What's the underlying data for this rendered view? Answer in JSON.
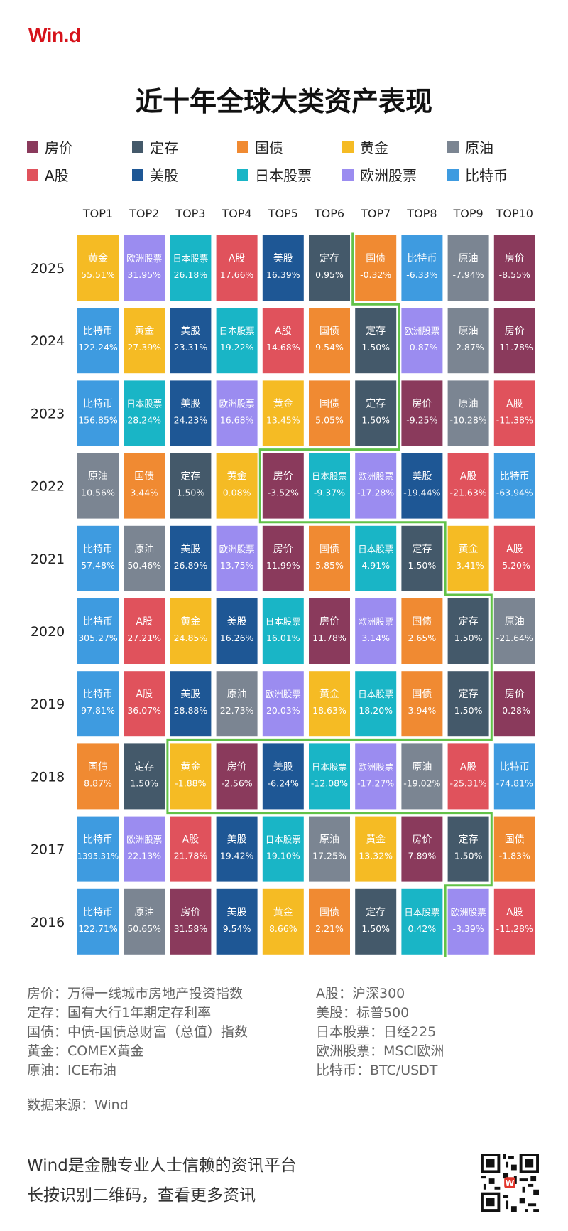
{
  "brand": "Win.d",
  "title": "近十年全球大类资产表现",
  "legend": [
    {
      "label": "房价",
      "color": "#8a3a5c"
    },
    {
      "label": "定存",
      "color": "#44596a"
    },
    {
      "label": "国债",
      "color": "#f08a32"
    },
    {
      "label": "黄金",
      "color": "#f5bb24"
    },
    {
      "label": "原油",
      "color": "#7b8592"
    },
    {
      "label": "A股",
      "color": "#e0525c"
    },
    {
      "label": "美股",
      "color": "#1e5795"
    },
    {
      "label": "日本股票",
      "color": "#19b5c6"
    },
    {
      "label": "欧洲股票",
      "color": "#9b8cf0"
    },
    {
      "label": "比特币",
      "color": "#3e9be0"
    }
  ],
  "chart_data": {
    "type": "table",
    "title": "近十年全球大类资产表现",
    "columns": [
      "TOP1",
      "TOP2",
      "TOP3",
      "TOP4",
      "TOP5",
      "TOP6",
      "TOP7",
      "TOP8",
      "TOP9",
      "TOP10"
    ],
    "rows": [
      {
        "year": "2025",
        "cells": [
          [
            "黄金",
            "55.51%"
          ],
          [
            "欧洲股票",
            "31.95%"
          ],
          [
            "日本股票",
            "26.18%"
          ],
          [
            "A股",
            "17.66%"
          ],
          [
            "美股",
            "16.39%"
          ],
          [
            "定存",
            "0.95%"
          ],
          [
            "国债",
            "-0.32%"
          ],
          [
            "比特币",
            "-6.33%"
          ],
          [
            "原油",
            "-7.94%"
          ],
          [
            "房价",
            "-8.55%"
          ]
        ]
      },
      {
        "year": "2024",
        "cells": [
          [
            "比特币",
            "122.24%"
          ],
          [
            "黄金",
            "27.39%"
          ],
          [
            "美股",
            "23.31%"
          ],
          [
            "日本股票",
            "19.22%"
          ],
          [
            "A股",
            "14.68%"
          ],
          [
            "国债",
            "9.54%"
          ],
          [
            "定存",
            "1.50%"
          ],
          [
            "欧洲股票",
            "-0.87%"
          ],
          [
            "原油",
            "-2.87%"
          ],
          [
            "房价",
            "-11.78%"
          ]
        ]
      },
      {
        "year": "2023",
        "cells": [
          [
            "比特币",
            "156.85%"
          ],
          [
            "日本股票",
            "28.24%"
          ],
          [
            "美股",
            "24.23%"
          ],
          [
            "欧洲股票",
            "16.68%"
          ],
          [
            "黄金",
            "13.45%"
          ],
          [
            "国债",
            "5.05%"
          ],
          [
            "定存",
            "1.50%"
          ],
          [
            "房价",
            "-9.25%"
          ],
          [
            "原油",
            "-10.28%"
          ],
          [
            "A股",
            "-11.38%"
          ]
        ]
      },
      {
        "year": "2022",
        "cells": [
          [
            "原油",
            "10.56%"
          ],
          [
            "国债",
            "3.44%"
          ],
          [
            "定存",
            "1.50%"
          ],
          [
            "黄金",
            "0.08%"
          ],
          [
            "房价",
            "-3.52%"
          ],
          [
            "日本股票",
            "-9.37%"
          ],
          [
            "欧洲股票",
            "-17.28%"
          ],
          [
            "美股",
            "-19.44%"
          ],
          [
            "A股",
            "-21.63%"
          ],
          [
            "比特币",
            "-63.94%"
          ]
        ]
      },
      {
        "year": "2021",
        "cells": [
          [
            "比特币",
            "57.48%"
          ],
          [
            "原油",
            "50.46%"
          ],
          [
            "美股",
            "26.89%"
          ],
          [
            "欧洲股票",
            "13.75%"
          ],
          [
            "房价",
            "11.99%"
          ],
          [
            "国债",
            "5.85%"
          ],
          [
            "日本股票",
            "4.91%"
          ],
          [
            "定存",
            "1.50%"
          ],
          [
            "黄金",
            "-3.41%"
          ],
          [
            "A股",
            "-5.20%"
          ]
        ]
      },
      {
        "year": "2020",
        "cells": [
          [
            "比特币",
            "305.27%"
          ],
          [
            "A股",
            "27.21%"
          ],
          [
            "黄金",
            "24.85%"
          ],
          [
            "美股",
            "16.26%"
          ],
          [
            "日本股票",
            "16.01%"
          ],
          [
            "房价",
            "11.78%"
          ],
          [
            "欧洲股票",
            "3.14%"
          ],
          [
            "国债",
            "2.65%"
          ],
          [
            "定存",
            "1.50%"
          ],
          [
            "原油",
            "-21.64%"
          ]
        ]
      },
      {
        "year": "2019",
        "cells": [
          [
            "比特币",
            "97.81%"
          ],
          [
            "A股",
            "36.07%"
          ],
          [
            "美股",
            "28.88%"
          ],
          [
            "原油",
            "22.73%"
          ],
          [
            "欧洲股票",
            "20.03%"
          ],
          [
            "黄金",
            "18.63%"
          ],
          [
            "日本股票",
            "18.20%"
          ],
          [
            "国债",
            "3.94%"
          ],
          [
            "定存",
            "1.50%"
          ],
          [
            "房价",
            "-0.28%"
          ]
        ]
      },
      {
        "year": "2018",
        "cells": [
          [
            "国债",
            "8.87%"
          ],
          [
            "定存",
            "1.50%"
          ],
          [
            "黄金",
            "-1.88%"
          ],
          [
            "房价",
            "-2.56%"
          ],
          [
            "美股",
            "-6.24%"
          ],
          [
            "日本股票",
            "-12.08%"
          ],
          [
            "欧洲股票",
            "-17.27%"
          ],
          [
            "原油",
            "-19.02%"
          ],
          [
            "A股",
            "-25.31%"
          ],
          [
            "比特币",
            "-74.81%"
          ]
        ]
      },
      {
        "year": "2017",
        "cells": [
          [
            "比特币",
            "1395.31%"
          ],
          [
            "欧洲股票",
            "22.13%"
          ],
          [
            "A股",
            "21.78%"
          ],
          [
            "美股",
            "19.42%"
          ],
          [
            "日本股票",
            "19.10%"
          ],
          [
            "原油",
            "17.25%"
          ],
          [
            "黄金",
            "13.32%"
          ],
          [
            "房价",
            "7.89%"
          ],
          [
            "定存",
            "1.50%"
          ],
          [
            "国债",
            "-1.83%"
          ]
        ]
      },
      {
        "year": "2016",
        "cells": [
          [
            "比特币",
            "122.71%"
          ],
          [
            "原油",
            "50.65%"
          ],
          [
            "房价",
            "31.58%"
          ],
          [
            "美股",
            "9.54%"
          ],
          [
            "黄金",
            "8.66%"
          ],
          [
            "国债",
            "2.21%"
          ],
          [
            "定存",
            "1.50%"
          ],
          [
            "日本股票",
            "0.42%"
          ],
          [
            "欧洲股票",
            "-3.39%"
          ],
          [
            "A股",
            "-11.28%"
          ]
        ]
      }
    ],
    "highlight": {
      "description": "zero-return boundary",
      "color": "#62c248"
    }
  },
  "notes_left": [
    "房价：万得一线城市房地产投资指数",
    "定存：国有大行1年期定存利率",
    "国债：中债-国债总财富（总值）指数",
    "黄金：COMEX黄金",
    "原油：ICE布油"
  ],
  "notes_right": [
    "A股：沪深300",
    "美股：标普500",
    "日本股票：日经225",
    "欧洲股票：MSCI欧洲",
    "比特币：BTC/USDT"
  ],
  "source": "数据来源：Wind",
  "footer": {
    "line1": "Wind是金融专业人士信赖的资讯平台",
    "line2": "长按识别二维码，查看更多资讯"
  }
}
